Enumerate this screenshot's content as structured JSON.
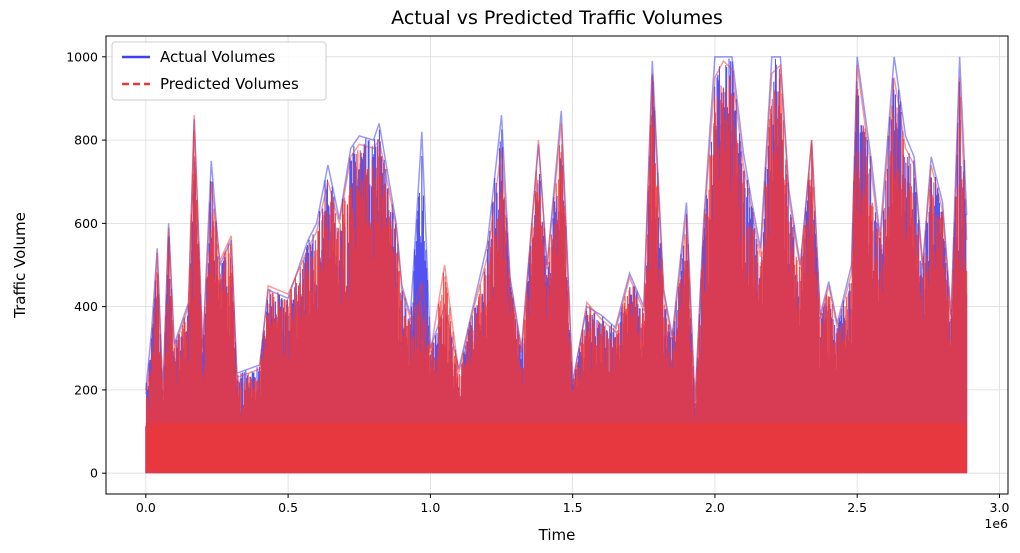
{
  "chart_data": {
    "type": "line",
    "title": "Actual vs Predicted Traffic Volumes",
    "xlabel": "Time",
    "ylabel": "Traffic Volume",
    "x_offset_label": "1e6",
    "xlim": [
      -0.14,
      3.03
    ],
    "ylim": [
      -50,
      1050
    ],
    "x_ticks": [
      0.0,
      0.5,
      1.0,
      1.5,
      2.0,
      2.5,
      3.0
    ],
    "x_tick_labels": [
      "0.0",
      "0.5",
      "1.0",
      "1.5",
      "2.0",
      "2.5",
      "3.0"
    ],
    "y_ticks": [
      0,
      200,
      400,
      600,
      800,
      1000
    ],
    "y_tick_labels": [
      "0",
      "200",
      "400",
      "600",
      "800",
      "1000"
    ],
    "grid": true,
    "legend": "top-left",
    "x_range": [
      0.0,
      2.885
    ],
    "series": [
      {
        "name": "Actual Volumes",
        "color": "#4040f0",
        "style": "solid",
        "peak_envelope": [
          [
            0.0,
            200
          ],
          [
            0.02,
            340
          ],
          [
            0.04,
            540
          ],
          [
            0.06,
            190
          ],
          [
            0.08,
            600
          ],
          [
            0.1,
            310
          ],
          [
            0.15,
            410
          ],
          [
            0.17,
            850
          ],
          [
            0.2,
            300
          ],
          [
            0.23,
            750
          ],
          [
            0.26,
            500
          ],
          [
            0.3,
            560
          ],
          [
            0.32,
            240
          ],
          [
            0.4,
            260
          ],
          [
            0.43,
            440
          ],
          [
            0.5,
            420
          ],
          [
            0.57,
            560
          ],
          [
            0.6,
            600
          ],
          [
            0.64,
            740
          ],
          [
            0.68,
            610
          ],
          [
            0.72,
            780
          ],
          [
            0.75,
            810
          ],
          [
            0.8,
            800
          ],
          [
            0.82,
            840
          ],
          [
            0.88,
            600
          ],
          [
            0.9,
            450
          ],
          [
            0.93,
            380
          ],
          [
            0.97,
            820
          ],
          [
            1.0,
            300
          ],
          [
            1.05,
            400
          ],
          [
            1.1,
            250
          ],
          [
            1.15,
            400
          ],
          [
            1.2,
            550
          ],
          [
            1.25,
            860
          ],
          [
            1.28,
            470
          ],
          [
            1.32,
            300
          ],
          [
            1.38,
            790
          ],
          [
            1.41,
            500
          ],
          [
            1.46,
            870
          ],
          [
            1.5,
            220
          ],
          [
            1.55,
            400
          ],
          [
            1.6,
            380
          ],
          [
            1.65,
            350
          ],
          [
            1.7,
            480
          ],
          [
            1.75,
            400
          ],
          [
            1.78,
            990
          ],
          [
            1.82,
            440
          ],
          [
            1.85,
            330
          ],
          [
            1.9,
            650
          ],
          [
            1.93,
            170
          ],
          [
            1.96,
            600
          ],
          [
            2.0,
            1000
          ],
          [
            2.03,
            1000
          ],
          [
            2.06,
            1000
          ],
          [
            2.1,
            770
          ],
          [
            2.13,
            650
          ],
          [
            2.16,
            540
          ],
          [
            2.2,
            1000
          ],
          [
            2.23,
            1000
          ],
          [
            2.26,
            680
          ],
          [
            2.3,
            500
          ],
          [
            2.34,
            800
          ],
          [
            2.37,
            380
          ],
          [
            2.4,
            460
          ],
          [
            2.43,
            360
          ],
          [
            2.48,
            500
          ],
          [
            2.5,
            1000
          ],
          [
            2.55,
            750
          ],
          [
            2.58,
            570
          ],
          [
            2.63,
            1000
          ],
          [
            2.67,
            810
          ],
          [
            2.7,
            760
          ],
          [
            2.73,
            500
          ],
          [
            2.76,
            760
          ],
          [
            2.8,
            650
          ],
          [
            2.83,
            380
          ],
          [
            2.86,
            1000
          ],
          [
            2.885,
            620
          ]
        ]
      },
      {
        "name": "Predicted Volumes",
        "color": "#ee3838",
        "style": "dashed",
        "peak_envelope": [
          [
            0.0,
            190
          ],
          [
            0.02,
            280
          ],
          [
            0.04,
            530
          ],
          [
            0.06,
            180
          ],
          [
            0.08,
            590
          ],
          [
            0.1,
            300
          ],
          [
            0.15,
            400
          ],
          [
            0.17,
            860
          ],
          [
            0.2,
            290
          ],
          [
            0.23,
            700
          ],
          [
            0.26,
            510
          ],
          [
            0.3,
            570
          ],
          [
            0.32,
            230
          ],
          [
            0.4,
            250
          ],
          [
            0.43,
            450
          ],
          [
            0.5,
            430
          ],
          [
            0.57,
            540
          ],
          [
            0.6,
            580
          ],
          [
            0.64,
            700
          ],
          [
            0.68,
            600
          ],
          [
            0.72,
            760
          ],
          [
            0.75,
            790
          ],
          [
            0.8,
            780
          ],
          [
            0.82,
            800
          ],
          [
            0.88,
            590
          ],
          [
            0.9,
            440
          ],
          [
            0.93,
            370
          ],
          [
            0.97,
            460
          ],
          [
            1.0,
            290
          ],
          [
            1.05,
            500
          ],
          [
            1.1,
            240
          ],
          [
            1.15,
            390
          ],
          [
            1.2,
            520
          ],
          [
            1.25,
            780
          ],
          [
            1.28,
            460
          ],
          [
            1.32,
            290
          ],
          [
            1.38,
            800
          ],
          [
            1.41,
            490
          ],
          [
            1.46,
            840
          ],
          [
            1.5,
            210
          ],
          [
            1.55,
            410
          ],
          [
            1.6,
            370
          ],
          [
            1.65,
            340
          ],
          [
            1.7,
            470
          ],
          [
            1.75,
            390
          ],
          [
            1.78,
            960
          ],
          [
            1.82,
            430
          ],
          [
            1.85,
            320
          ],
          [
            1.9,
            620
          ],
          [
            1.93,
            160
          ],
          [
            1.96,
            580
          ],
          [
            2.0,
            950
          ],
          [
            2.03,
            990
          ],
          [
            2.06,
            970
          ],
          [
            2.1,
            740
          ],
          [
            2.13,
            630
          ],
          [
            2.16,
            520
          ],
          [
            2.2,
            960
          ],
          [
            2.23,
            980
          ],
          [
            2.26,
            660
          ],
          [
            2.3,
            490
          ],
          [
            2.34,
            800
          ],
          [
            2.37,
            370
          ],
          [
            2.4,
            450
          ],
          [
            2.43,
            350
          ],
          [
            2.48,
            480
          ],
          [
            2.5,
            980
          ],
          [
            2.55,
            720
          ],
          [
            2.58,
            550
          ],
          [
            2.63,
            950
          ],
          [
            2.67,
            780
          ],
          [
            2.7,
            740
          ],
          [
            2.73,
            490
          ],
          [
            2.76,
            740
          ],
          [
            2.8,
            630
          ],
          [
            2.83,
            370
          ],
          [
            2.86,
            950
          ],
          [
            2.885,
            560
          ]
        ]
      }
    ]
  }
}
